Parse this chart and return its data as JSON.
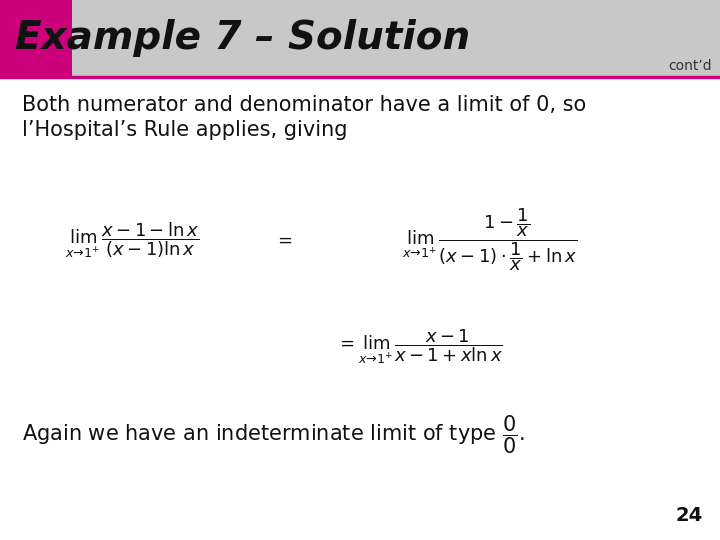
{
  "title": "Example 7 – Solution",
  "contd": "cont’d",
  "title_bg_color": "#c8c8c8",
  "title_pink_rect_color": "#cc007a",
  "title_bottom_line_color": "#cc007a",
  "title_font_size": 28,
  "body_bg_color": "#ffffff",
  "text1_line1": "Both numerator and denominator have a limit of 0, so",
  "text1_line2": "l’Hospital’s Rule applies, giving",
  "text1_fontsize": 15,
  "eq1_lhs": "$\\lim_{x \\to 1^{+}} \\dfrac{x - 1 - \\ln x}{(x-1)\\ln x}$",
  "eq1_eq": "$=$",
  "eq1_rhs": "$\\lim_{x \\to 1^{+}} \\dfrac{1 - \\dfrac{1}{x}}{\\left(x-1\\right)\\cdot\\dfrac{1}{x} + \\ln x}$",
  "eq2": "$= \\lim_{x \\to 1^{+}} \\dfrac{x - 1}{x - 1 + x\\ln x}$",
  "text2_pre": "Again we have an indeterminate limit of type ",
  "text2_frac": "$\\dfrac{0}{0}$",
  "text2_post": ".",
  "text2_fontsize": 15,
  "page_number": "24",
  "page_number_fontsize": 14
}
